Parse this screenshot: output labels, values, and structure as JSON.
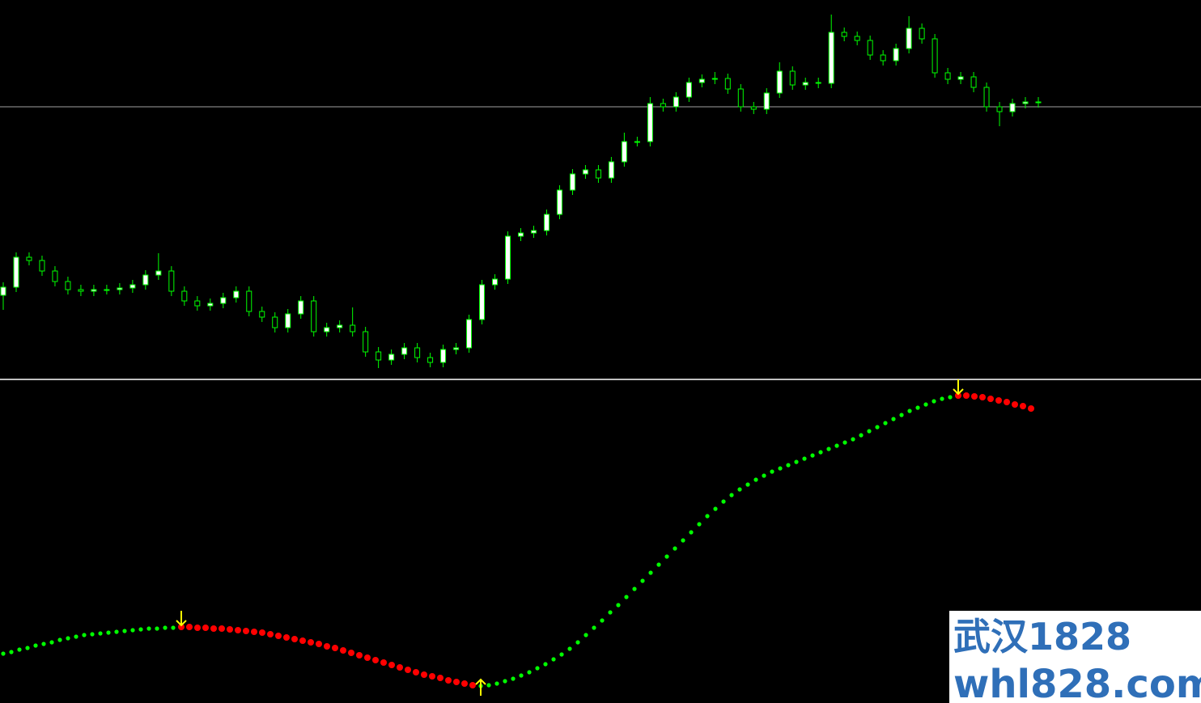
{
  "chart_data": [
    {
      "type": "candlestick",
      "ylim": [
        0,
        469
      ],
      "price_line": 337,
      "up_color": "#ffffff",
      "down_color": "#000000",
      "wick_color": "#00ff00",
      "open": [
        104,
        114,
        151,
        147,
        134,
        121,
        111,
        109,
        111,
        111,
        113,
        117,
        129,
        134,
        109,
        97,
        91,
        94,
        101,
        109,
        84,
        77,
        64,
        81,
        97,
        59,
        64,
        67,
        59,
        34,
        24,
        31,
        39,
        27,
        21,
        37,
        39,
        74,
        117,
        124,
        177,
        181,
        184,
        204,
        234,
        254,
        259,
        249,
        269,
        294,
        294,
        341,
        337,
        349,
        367,
        371,
        372,
        359,
        337,
        334,
        354,
        381,
        364,
        367,
        366,
        429,
        424,
        419,
        401,
        394,
        409,
        434,
        421,
        379,
        371,
        374,
        361,
        337,
        331,
        341,
        343
      ],
      "high": [
        120,
        157,
        157,
        153,
        140,
        127,
        117,
        117,
        117,
        119,
        123,
        135,
        156,
        140,
        115,
        103,
        100,
        107,
        115,
        115,
        90,
        83,
        87,
        103,
        103,
        70,
        73,
        89,
        65,
        40,
        37,
        45,
        45,
        33,
        43,
        45,
        80,
        123,
        130,
        183,
        187,
        190,
        210,
        240,
        260,
        265,
        265,
        275,
        305,
        300,
        349,
        347,
        355,
        373,
        377,
        380,
        378,
        365,
        343,
        360,
        392,
        387,
        373,
        373,
        451,
        435,
        430,
        425,
        407,
        415,
        449,
        440,
        427,
        385,
        380,
        380,
        367,
        343,
        347,
        349,
        349
      ],
      "low": [
        86,
        108,
        141,
        128,
        115,
        105,
        103,
        103,
        105,
        105,
        107,
        111,
        123,
        103,
        91,
        85,
        85,
        88,
        95,
        78,
        71,
        58,
        58,
        75,
        53,
        53,
        58,
        53,
        28,
        14,
        18,
        25,
        21,
        15,
        15,
        31,
        33,
        68,
        111,
        118,
        171,
        175,
        178,
        198,
        228,
        248,
        243,
        243,
        263,
        288,
        288,
        331,
        331,
        343,
        361,
        365,
        353,
        331,
        328,
        328,
        348,
        358,
        358,
        360,
        360,
        418,
        413,
        395,
        388,
        388,
        403,
        415,
        373,
        365,
        365,
        355,
        331,
        313,
        325,
        335,
        336
      ],
      "close": [
        114,
        151,
        147,
        134,
        121,
        111,
        109,
        111,
        111,
        113,
        117,
        129,
        134,
        109,
        97,
        91,
        94,
        101,
        109,
        84,
        77,
        64,
        81,
        97,
        59,
        64,
        67,
        59,
        34,
        24,
        31,
        39,
        27,
        21,
        37,
        39,
        74,
        117,
        124,
        177,
        181,
        184,
        204,
        234,
        254,
        259,
        249,
        269,
        294,
        294,
        341,
        337,
        349,
        367,
        371,
        372,
        359,
        337,
        334,
        354,
        381,
        364,
        367,
        366,
        429,
        424,
        419,
        401,
        394,
        409,
        434,
        421,
        379,
        371,
        374,
        361,
        337,
        331,
        341,
        343,
        342
      ]
    },
    {
      "type": "dots",
      "ylim": [
        0,
        399
      ],
      "arrow_color": "#ffff00",
      "series": [
        {
          "color": "#00ff00",
          "values": [
            61,
            63,
            66,
            68,
            71,
            73,
            75,
            78,
            80,
            82,
            84,
            85,
            86,
            87,
            88,
            89,
            90,
            91,
            92,
            92,
            93,
            93,
            null,
            null,
            null,
            null,
            null,
            null,
            null,
            null,
            null,
            null,
            null,
            null,
            null,
            null,
            null,
            null,
            null,
            null,
            null,
            null,
            null,
            null,
            null,
            null,
            null,
            null,
            null,
            null,
            null,
            null,
            null,
            null,
            null,
            null,
            null,
            null,
            null,
            21,
            22,
            24,
            27,
            30,
            34,
            38,
            43,
            48,
            54,
            60,
            67,
            75,
            84,
            93,
            102,
            112,
            121,
            131,
            141,
            151,
            161,
            171,
            181,
            191,
            201,
            211,
            221,
            231,
            240,
            249,
            257,
            264,
            270,
            276,
            281,
            286,
            290,
            294,
            298,
            302,
            306,
            310,
            314,
            318,
            322,
            326,
            331,
            336,
            341,
            346,
            351,
            356,
            361,
            365,
            369,
            373,
            376,
            378,
            null,
            null,
            null,
            null,
            null,
            null,
            null,
            null,
            null,
            null
          ]
        },
        {
          "color": "#ff0000",
          "values": [
            null,
            null,
            null,
            null,
            null,
            null,
            null,
            null,
            null,
            null,
            null,
            null,
            null,
            null,
            null,
            null,
            null,
            null,
            null,
            null,
            null,
            null,
            94,
            94,
            93,
            93,
            92,
            92,
            91,
            90,
            89,
            88,
            87,
            85,
            83,
            81,
            79,
            77,
            75,
            73,
            70,
            68,
            65,
            62,
            59,
            56,
            53,
            50,
            47,
            44,
            41,
            38,
            35,
            33,
            31,
            28,
            26,
            24,
            22,
            null,
            null,
            null,
            null,
            null,
            null,
            null,
            null,
            null,
            null,
            null,
            null,
            null,
            null,
            null,
            null,
            null,
            null,
            null,
            null,
            null,
            null,
            null,
            null,
            null,
            null,
            null,
            null,
            null,
            null,
            null,
            null,
            null,
            null,
            null,
            null,
            null,
            null,
            null,
            null,
            null,
            null,
            null,
            null,
            null,
            null,
            null,
            null,
            null,
            null,
            null,
            null,
            null,
            null,
            null,
            null,
            null,
            null,
            null,
            380,
            380,
            379,
            378,
            376,
            374,
            372,
            369,
            367,
            364
          ]
        }
      ],
      "arrows": [
        {
          "index": 22,
          "direction": "down"
        },
        {
          "index": 59,
          "direction": "up"
        },
        {
          "index": 118,
          "direction": "down"
        }
      ]
    }
  ],
  "watermark": [
    "武汉1828",
    "whl828.com"
  ]
}
